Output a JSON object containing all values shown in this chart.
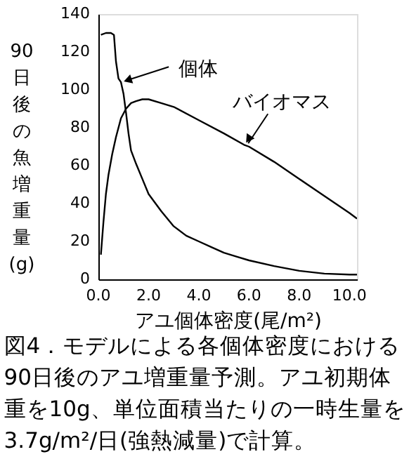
{
  "chart_data": {
    "type": "line",
    "xlabel": "アユ個体密度(尾/m²)",
    "ylabel": "90日後の魚増重量(g)",
    "xlim": [
      0,
      10.3
    ],
    "ylim": [
      0,
      140
    ],
    "xticks": [
      {
        "value": 0,
        "label": "0.0"
      },
      {
        "value": 2,
        "label": "2.0"
      },
      {
        "value": 4,
        "label": "4.0"
      },
      {
        "value": 6,
        "label": "6.0"
      },
      {
        "value": 8,
        "label": "8.0"
      },
      {
        "value": 10,
        "label": "10.0"
      }
    ],
    "yticks": [
      0,
      20,
      40,
      60,
      80,
      100,
      120,
      140
    ],
    "grid": false,
    "line_style": "solid",
    "marker": "none",
    "series": [
      {
        "name": "個体",
        "color": "#000000",
        "x": [
          0.1,
          0.3,
          0.5,
          0.62,
          0.7,
          0.8,
          0.9,
          1.0,
          1.1,
          1.2,
          1.3,
          1.5,
          1.75,
          2.0,
          2.5,
          3.0,
          3.5,
          4.0,
          4.5,
          5.0,
          5.5,
          6.0,
          7.0,
          8.0,
          9.0,
          10.0,
          10.3
        ],
        "values": [
          129,
          130,
          130,
          129,
          115,
          106,
          104,
          98,
          88,
          77,
          68,
          61,
          53,
          45,
          36,
          28,
          23,
          20,
          17,
          14,
          12,
          10,
          7,
          4.5,
          3,
          2.5,
          2.5
        ]
      },
      {
        "name": "バイオマス",
        "color": "#000000",
        "x": [
          0.1,
          0.2,
          0.3,
          0.4,
          0.55,
          0.7,
          0.9,
          1.1,
          1.3,
          1.5,
          1.75,
          2.0,
          2.5,
          3.0,
          4.0,
          5.0,
          5.8,
          6.0,
          7.0,
          8.0,
          9.0,
          10.0,
          10.3
        ],
        "values": [
          13,
          30,
          45,
          55,
          66,
          75,
          85,
          90,
          93,
          94,
          95,
          95,
          93,
          91,
          84,
          77,
          71,
          70,
          62,
          53,
          44,
          35,
          32
        ]
      }
    ],
    "annotations": [
      "図4．モデルによる各個体密度における90日後のアユ増重量予測。アユ初期体重を10g、単位面積当たりの一時生量を3.7g/m²/日(強熱減量)で計算。"
    ]
  }
}
